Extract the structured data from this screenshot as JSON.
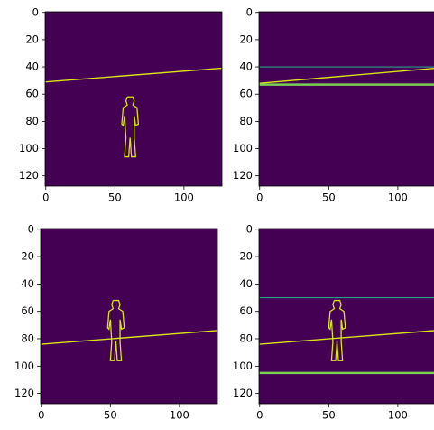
{
  "chart_data": [
    {
      "type": "image",
      "xlim": [
        -0.5,
        127.5
      ],
      "ylim": [
        127.5,
        -0.5
      ],
      "xticks": [
        0,
        50,
        100
      ],
      "yticks": [
        0,
        20,
        40,
        60,
        80,
        100,
        120
      ]
    },
    {
      "type": "image",
      "xlim": [
        -0.5,
        127.5
      ],
      "ylim": [
        127.5,
        -0.5
      ],
      "xticks": [
        0,
        50,
        100
      ],
      "yticks": [
        0,
        20,
        40,
        60,
        80,
        100,
        120
      ]
    },
    {
      "type": "image",
      "xlim": [
        -0.5,
        127.5
      ],
      "ylim": [
        127.5,
        -0.5
      ],
      "xticks": [
        0,
        50,
        100
      ],
      "yticks": [
        0,
        20,
        40,
        60,
        80,
        100,
        120
      ]
    },
    {
      "type": "image",
      "xlim": [
        -0.5,
        127.5
      ],
      "ylim": [
        127.5,
        -0.5
      ],
      "xticks": [
        0,
        50,
        100
      ],
      "yticks": [
        0,
        20,
        40,
        60,
        80,
        100,
        120
      ]
    }
  ]
}
